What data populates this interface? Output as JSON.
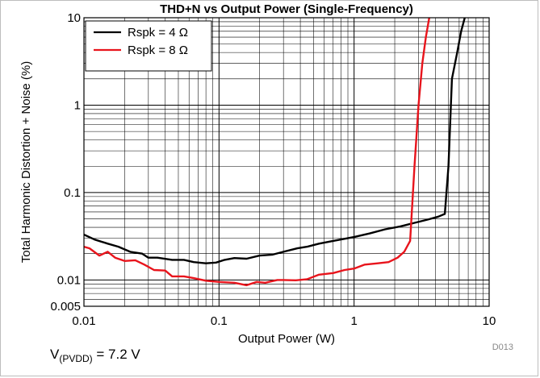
{
  "chart_data": {
    "type": "line",
    "title": "THD+N vs Output Power (Single-Frequency)",
    "xlabel": "Output Power (W)",
    "ylabel": "Total Harmonic Distortion + Noise (%)",
    "x_scale": "log",
    "y_scale": "log",
    "xlim": [
      0.01,
      10
    ],
    "ylim": [
      0.005,
      10
    ],
    "grid": true,
    "legend_position": "top-left",
    "x_ticks": [
      {
        "value": 0.01,
        "label": "0.01"
      },
      {
        "value": 0.1,
        "label": "0.1"
      },
      {
        "value": 1,
        "label": "1"
      },
      {
        "value": 10,
        "label": "10"
      }
    ],
    "y_ticks": [
      {
        "value": 0.005,
        "label": "0.005"
      },
      {
        "value": 0.01,
        "label": "0.01"
      },
      {
        "value": 0.1,
        "label": "0.1"
      },
      {
        "value": 1,
        "label": "1"
      },
      {
        "value": 10,
        "label": "10"
      }
    ],
    "series": [
      {
        "name": "Rspk = 4 Ω",
        "color": "#000000",
        "points": [
          [
            0.01,
            0.033
          ],
          [
            0.012,
            0.029
          ],
          [
            0.015,
            0.026
          ],
          [
            0.018,
            0.024
          ],
          [
            0.022,
            0.021
          ],
          [
            0.027,
            0.02
          ],
          [
            0.03,
            0.018
          ],
          [
            0.035,
            0.018
          ],
          [
            0.045,
            0.017
          ],
          [
            0.055,
            0.017
          ],
          [
            0.065,
            0.016
          ],
          [
            0.08,
            0.0155
          ],
          [
            0.095,
            0.0158
          ],
          [
            0.11,
            0.017
          ],
          [
            0.13,
            0.0178
          ],
          [
            0.16,
            0.0175
          ],
          [
            0.2,
            0.019
          ],
          [
            0.25,
            0.0195
          ],
          [
            0.3,
            0.021
          ],
          [
            0.38,
            0.023
          ],
          [
            0.45,
            0.024
          ],
          [
            0.55,
            0.026
          ],
          [
            0.7,
            0.028
          ],
          [
            1.0,
            0.031
          ],
          [
            1.3,
            0.034
          ],
          [
            1.7,
            0.038
          ],
          [
            2.2,
            0.041
          ],
          [
            2.8,
            0.045
          ],
          [
            3.5,
            0.049
          ],
          [
            4.2,
            0.053
          ],
          [
            4.7,
            0.057
          ],
          [
            5.0,
            0.2
          ],
          [
            5.3,
            2.0
          ],
          [
            5.8,
            4.0
          ],
          [
            6.2,
            7.0
          ],
          [
            6.6,
            10.0
          ]
        ]
      },
      {
        "name": "Rspk = 8 Ω",
        "color": "#e8141c",
        "points": [
          [
            0.01,
            0.024
          ],
          [
            0.011,
            0.023
          ],
          [
            0.013,
            0.019
          ],
          [
            0.015,
            0.021
          ],
          [
            0.017,
            0.018
          ],
          [
            0.02,
            0.0165
          ],
          [
            0.024,
            0.0168
          ],
          [
            0.028,
            0.015
          ],
          [
            0.033,
            0.013
          ],
          [
            0.04,
            0.0128
          ],
          [
            0.045,
            0.011
          ],
          [
            0.055,
            0.011
          ],
          [
            0.065,
            0.0105
          ],
          [
            0.08,
            0.0098
          ],
          [
            0.1,
            0.0095
          ],
          [
            0.13,
            0.0093
          ],
          [
            0.16,
            0.0087
          ],
          [
            0.19,
            0.0095
          ],
          [
            0.22,
            0.0093
          ],
          [
            0.27,
            0.01
          ],
          [
            0.3,
            0.01
          ],
          [
            0.37,
            0.0099
          ],
          [
            0.45,
            0.0102
          ],
          [
            0.55,
            0.0115
          ],
          [
            0.7,
            0.012
          ],
          [
            0.85,
            0.013
          ],
          [
            1.0,
            0.0135
          ],
          [
            1.2,
            0.015
          ],
          [
            1.5,
            0.0155
          ],
          [
            1.8,
            0.016
          ],
          [
            2.1,
            0.018
          ],
          [
            2.35,
            0.021
          ],
          [
            2.6,
            0.028
          ],
          [
            2.8,
            0.2
          ],
          [
            3.0,
            1.0
          ],
          [
            3.2,
            3.0
          ],
          [
            3.4,
            6.0
          ],
          [
            3.6,
            10.0
          ]
        ]
      }
    ],
    "source_code": "D013",
    "condition": {
      "prefix": "V",
      "sub": "(PVDD)",
      "suffix": " = 7.2 V"
    }
  }
}
